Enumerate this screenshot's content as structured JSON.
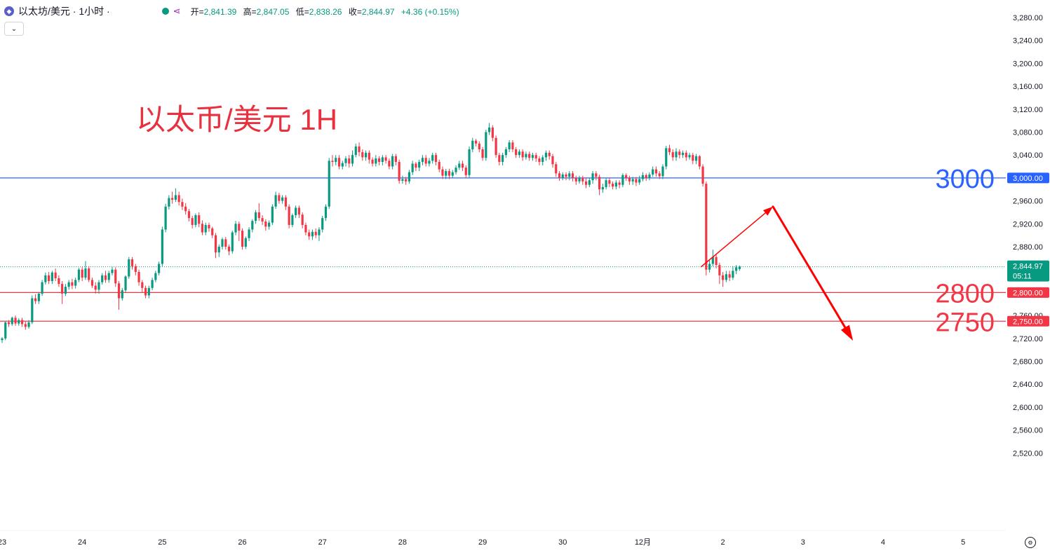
{
  "header": {
    "coin_icon": "ethereum-icon",
    "symbol": "以太坊/美元 · 1小时 ·",
    "status_color": "#089981",
    "share_icon": "share-icon",
    "open_label": "开=",
    "open": "2,841.39",
    "high_label": "高=",
    "high": "2,847.05",
    "low_label": "低=",
    "low": "2,838.26",
    "close_label": "收=",
    "close": "2,844.97",
    "change": "+4.36 (+0.15%)"
  },
  "collapse_icon": "chevron-down-icon",
  "settings_icon": "gear-icon",
  "colors": {
    "up": "#089981",
    "down": "#f23645",
    "line_blue": "#2962ff",
    "line_red": "#f23645",
    "arrow": "#ff0000"
  },
  "chart_data": {
    "type": "candlestick",
    "title": "以太币/美元 1H",
    "ylim": [
      2500,
      3300
    ],
    "y_ticks": [
      "3,280.00",
      "3,240.00",
      "3,200.00",
      "3,160.00",
      "3,120.00",
      "3,080.00",
      "3,040.00",
      "3,000.00",
      "2,960.00",
      "2,920.00",
      "2,880.00",
      "2,760.00",
      "2,720.00",
      "2,680.00",
      "2,640.00",
      "2,600.00",
      "2,560.00",
      "2,520.00"
    ],
    "x_ticks": [
      {
        "label": "23",
        "index": 0
      },
      {
        "label": "24",
        "index": 24
      },
      {
        "label": "25",
        "index": 48
      },
      {
        "label": "26",
        "index": 72
      },
      {
        "label": "27",
        "index": 96
      },
      {
        "label": "28",
        "index": 120
      },
      {
        "label": "29",
        "index": 144
      },
      {
        "label": "30",
        "index": 168
      },
      {
        "label": "12月",
        "index": 192
      },
      {
        "label": "2",
        "index": 216
      },
      {
        "label": "3",
        "index": 240
      },
      {
        "label": "4",
        "index": 264
      },
      {
        "label": "5",
        "index": 288
      }
    ],
    "last_price": {
      "value": 2844.97,
      "label": "2,844.97",
      "countdown": "05:11"
    },
    "levels": [
      {
        "value": 3000,
        "label": "3000",
        "tag": "3,000.00",
        "color": "#2962ff"
      },
      {
        "value": 2800,
        "label": "2800",
        "tag": "2,800.00",
        "color": "#f23645"
      },
      {
        "value": 2750,
        "label": "2750",
        "tag": "2,750.00",
        "color": "#f23645"
      }
    ],
    "forecast": {
      "index_start": 209.5,
      "value_start": 2845,
      "index_peak": 231,
      "value_peak": 2950,
      "index_end": 255,
      "value_end": 2716
    },
    "candles": [
      [
        2717,
        2720,
        2712,
        2722
      ],
      [
        2720,
        2748,
        2717,
        2750
      ],
      [
        2748,
        2745,
        2740,
        2752
      ],
      [
        2745,
        2756,
        2742,
        2758
      ],
      [
        2756,
        2746,
        2742,
        2760
      ],
      [
        2746,
        2752,
        2742,
        2755
      ],
      [
        2752,
        2745,
        2740,
        2756
      ],
      [
        2745,
        2740,
        2735,
        2750
      ],
      [
        2740,
        2748,
        2737,
        2752
      ],
      [
        2748,
        2790,
        2745,
        2795
      ],
      [
        2790,
        2785,
        2780,
        2797
      ],
      [
        2785,
        2798,
        2780,
        2800
      ],
      [
        2798,
        2818,
        2794,
        2822
      ],
      [
        2818,
        2830,
        2814,
        2835
      ],
      [
        2830,
        2820,
        2815,
        2836
      ],
      [
        2820,
        2835,
        2815,
        2838
      ],
      [
        2835,
        2825,
        2820,
        2842
      ],
      [
        2825,
        2815,
        2810,
        2830
      ],
      [
        2815,
        2798,
        2780,
        2820
      ],
      [
        2798,
        2810,
        2794,
        2815
      ],
      [
        2810,
        2818,
        2805,
        2822
      ],
      [
        2818,
        2812,
        2806,
        2824
      ],
      [
        2812,
        2822,
        2807,
        2826
      ],
      [
        2822,
        2840,
        2818,
        2843
      ],
      [
        2840,
        2826,
        2820,
        2845
      ],
      [
        2826,
        2842,
        2822,
        2855
      ],
      [
        2842,
        2822,
        2818,
        2846
      ],
      [
        2822,
        2812,
        2808,
        2826
      ],
      [
        2812,
        2805,
        2798,
        2818
      ],
      [
        2805,
        2818,
        2798,
        2822
      ],
      [
        2818,
        2830,
        2814,
        2834
      ],
      [
        2830,
        2822,
        2817,
        2838
      ],
      [
        2822,
        2834,
        2817,
        2838
      ],
      [
        2834,
        2840,
        2830,
        2845
      ],
      [
        2840,
        2816,
        2810,
        2844
      ],
      [
        2816,
        2790,
        2770,
        2820
      ],
      [
        2790,
        2804,
        2786,
        2808
      ],
      [
        2804,
        2828,
        2800,
        2830
      ],
      [
        2828,
        2858,
        2824,
        2862
      ],
      [
        2858,
        2846,
        2840,
        2862
      ],
      [
        2846,
        2836,
        2830,
        2850
      ],
      [
        2836,
        2818,
        2812,
        2840
      ],
      [
        2818,
        2808,
        2800,
        2822
      ],
      [
        2808,
        2795,
        2790,
        2812
      ],
      [
        2795,
        2808,
        2790,
        2812
      ],
      [
        2808,
        2822,
        2804,
        2826
      ],
      [
        2822,
        2834,
        2818,
        2838
      ],
      [
        2834,
        2850,
        2830,
        2854
      ],
      [
        2850,
        2910,
        2846,
        2915
      ],
      [
        2910,
        2950,
        2905,
        2955
      ],
      [
        2950,
        2965,
        2945,
        2970
      ],
      [
        2965,
        2962,
        2955,
        2976
      ],
      [
        2962,
        2970,
        2958,
        2982
      ],
      [
        2970,
        2958,
        2952,
        2976
      ],
      [
        2958,
        2950,
        2944,
        2964
      ],
      [
        2950,
        2942,
        2936,
        2956
      ],
      [
        2942,
        2930,
        2924,
        2946
      ],
      [
        2930,
        2918,
        2912,
        2934
      ],
      [
        2918,
        2935,
        2914,
        2938
      ],
      [
        2935,
        2920,
        2914,
        2940
      ],
      [
        2920,
        2905,
        2900,
        2926
      ],
      [
        2905,
        2918,
        2900,
        2922
      ],
      [
        2918,
        2912,
        2906,
        2922
      ],
      [
        2912,
        2900,
        2895,
        2915
      ],
      [
        2900,
        2870,
        2860,
        2904
      ],
      [
        2870,
        2880,
        2862,
        2884
      ],
      [
        2880,
        2893,
        2875,
        2896
      ],
      [
        2893,
        2880,
        2875,
        2897
      ],
      [
        2880,
        2872,
        2865,
        2884
      ],
      [
        2872,
        2905,
        2868,
        2908
      ],
      [
        2905,
        2920,
        2900,
        2925
      ],
      [
        2920,
        2908,
        2890,
        2924
      ],
      [
        2908,
        2880,
        2875,
        2912
      ],
      [
        2880,
        2895,
        2876,
        2898
      ],
      [
        2895,
        2910,
        2890,
        2914
      ],
      [
        2910,
        2925,
        2905,
        2928
      ],
      [
        2925,
        2940,
        2920,
        2944
      ],
      [
        2940,
        2930,
        2925,
        2956
      ],
      [
        2930,
        2924,
        2918,
        2935
      ],
      [
        2924,
        2915,
        2908,
        2928
      ],
      [
        2915,
        2922,
        2910,
        2926
      ],
      [
        2922,
        2950,
        2918,
        2954
      ],
      [
        2950,
        2970,
        2946,
        2976
      ],
      [
        2970,
        2960,
        2955,
        2974
      ],
      [
        2960,
        2966,
        2955,
        2970
      ],
      [
        2966,
        2950,
        2944,
        2970
      ],
      [
        2950,
        2918,
        2912,
        2954
      ],
      [
        2918,
        2935,
        2914,
        2938
      ],
      [
        2935,
        2948,
        2930,
        2952
      ],
      [
        2948,
        2936,
        2930,
        2952
      ],
      [
        2936,
        2918,
        2912,
        2940
      ],
      [
        2918,
        2905,
        2900,
        2922
      ],
      [
        2905,
        2898,
        2892,
        2910
      ],
      [
        2898,
        2906,
        2892,
        2910
      ],
      [
        2906,
        2900,
        2895,
        2912
      ],
      [
        2900,
        2910,
        2890,
        2914
      ],
      [
        2910,
        2930,
        2905,
        2934
      ],
      [
        2930,
        2950,
        2925,
        2954
      ],
      [
        2950,
        3030,
        2946,
        3035
      ],
      [
        3030,
        3028,
        3020,
        3040
      ],
      [
        3028,
        3035,
        3022,
        3040
      ],
      [
        3035,
        3020,
        3015,
        3040
      ],
      [
        3020,
        3026,
        3015,
        3030
      ],
      [
        3026,
        3034,
        3020,
        3038
      ],
      [
        3034,
        3025,
        3018,
        3040
      ],
      [
        3025,
        3040,
        3020,
        3048
      ],
      [
        3040,
        3055,
        3036,
        3060
      ],
      [
        3055,
        3045,
        3038,
        3062
      ],
      [
        3045,
        3036,
        3030,
        3050
      ],
      [
        3036,
        3044,
        3030,
        3048
      ],
      [
        3044,
        3032,
        3025,
        3048
      ],
      [
        3032,
        3025,
        3020,
        3036
      ],
      [
        3025,
        3034,
        3020,
        3040
      ],
      [
        3034,
        3028,
        3022,
        3038
      ],
      [
        3028,
        3036,
        3022,
        3040
      ],
      [
        3036,
        3030,
        3025,
        3040
      ],
      [
        3030,
        3020,
        3015,
        3034
      ],
      [
        3020,
        3038,
        3015,
        3042
      ],
      [
        3038,
        3028,
        3022,
        3042
      ],
      [
        3028,
        2995,
        2990,
        3032
      ],
      [
        2995,
        2998,
        2990,
        3004
      ],
      [
        2998,
        2994,
        2988,
        3002
      ],
      [
        2994,
        3010,
        2990,
        3014
      ],
      [
        3010,
        3025,
        3005,
        3030
      ],
      [
        3025,
        3018,
        3012,
        3028
      ],
      [
        3018,
        3028,
        3012,
        3032
      ],
      [
        3028,
        3035,
        3022,
        3040
      ],
      [
        3035,
        3025,
        3020,
        3040
      ],
      [
        3025,
        3030,
        3020,
        3035
      ],
      [
        3030,
        3040,
        3025,
        3044
      ],
      [
        3040,
        3028,
        3022,
        3044
      ],
      [
        3028,
        3015,
        3010,
        3032
      ],
      [
        3015,
        3004,
        2998,
        3020
      ],
      [
        3004,
        3012,
        2998,
        3016
      ],
      [
        3012,
        3004,
        2998,
        3016
      ],
      [
        3004,
        3010,
        3000,
        3014
      ],
      [
        3010,
        3018,
        3006,
        3022
      ],
      [
        3018,
        3025,
        3014,
        3030
      ],
      [
        3025,
        3018,
        3012,
        3030
      ],
      [
        3018,
        3005,
        3000,
        3022
      ],
      [
        3005,
        3050,
        3000,
        3055
      ],
      [
        3050,
        3065,
        3045,
        3070
      ],
      [
        3065,
        3060,
        3055,
        3068
      ],
      [
        3060,
        3050,
        3045,
        3064
      ],
      [
        3050,
        3035,
        3030,
        3054
      ],
      [
        3035,
        3080,
        3030,
        3084
      ],
      [
        3080,
        3088,
        3075,
        3096
      ],
      [
        3088,
        3070,
        3064,
        3092
      ],
      [
        3070,
        3040,
        3035,
        3074
      ],
      [
        3040,
        3028,
        3022,
        3044
      ],
      [
        3028,
        3040,
        3022,
        3044
      ],
      [
        3040,
        3050,
        3035,
        3054
      ],
      [
        3050,
        3062,
        3045,
        3066
      ],
      [
        3062,
        3050,
        3045,
        3066
      ],
      [
        3050,
        3040,
        3035,
        3054
      ],
      [
        3040,
        3046,
        3035,
        3050
      ],
      [
        3046,
        3036,
        3030,
        3050
      ],
      [
        3036,
        3042,
        3032,
        3046
      ],
      [
        3042,
        3035,
        3030,
        3046
      ],
      [
        3035,
        3040,
        3030,
        3044
      ],
      [
        3040,
        3034,
        3028,
        3044
      ],
      [
        3034,
        3028,
        3022,
        3038
      ],
      [
        3028,
        3036,
        3022,
        3040
      ],
      [
        3036,
        3044,
        3030,
        3048
      ],
      [
        3044,
        3038,
        3032,
        3048
      ],
      [
        3038,
        3024,
        3018,
        3042
      ],
      [
        3024,
        3008,
        3002,
        3028
      ],
      [
        3008,
        3000,
        2995,
        3012
      ],
      [
        3000,
        3006,
        2996,
        3010
      ],
      [
        3006,
        3002,
        2996,
        3010
      ],
      [
        3002,
        3008,
        2996,
        3012
      ],
      [
        3008,
        3000,
        2994,
        3012
      ],
      [
        3000,
        2994,
        2988,
        3004
      ],
      [
        2994,
        3000,
        2990,
        3004
      ],
      [
        3000,
        2994,
        2988,
        3004
      ],
      [
        2994,
        2988,
        2982,
        3000
      ],
      [
        2988,
        2996,
        2984,
        3000
      ],
      [
        2996,
        3008,
        2990,
        3012
      ],
      [
        3008,
        3002,
        2996,
        3012
      ],
      [
        3002,
        2980,
        2970,
        3006
      ],
      [
        2980,
        2984,
        2974,
        2990
      ],
      [
        2984,
        2996,
        2980,
        3000
      ],
      [
        2996,
        2990,
        2984,
        3000
      ],
      [
        2990,
        2985,
        2980,
        2994
      ],
      [
        2985,
        2992,
        2980,
        2996
      ],
      [
        2992,
        2988,
        2982,
        2996
      ],
      [
        2988,
        3005,
        2984,
        3008
      ],
      [
        3005,
        3000,
        2995,
        3008
      ],
      [
        3000,
        2994,
        2988,
        3004
      ],
      [
        2994,
        2998,
        2988,
        3002
      ],
      [
        2998,
        2992,
        2986,
        3002
      ],
      [
        2992,
        2998,
        2988,
        3004
      ],
      [
        2998,
        3005,
        2994,
        3010
      ],
      [
        3005,
        3000,
        2995,
        3008
      ],
      [
        3000,
        3006,
        2996,
        3010
      ],
      [
        3006,
        3015,
        3002,
        3020
      ],
      [
        3015,
        3008,
        3002,
        3020
      ],
      [
        3008,
        3003,
        2998,
        3012
      ],
      [
        3003,
        3020,
        2998,
        3024
      ],
      [
        3020,
        3052,
        3015,
        3056
      ],
      [
        3052,
        3045,
        3040,
        3058
      ],
      [
        3045,
        3036,
        3030,
        3050
      ],
      [
        3036,
        3046,
        3030,
        3052
      ],
      [
        3046,
        3040,
        3034,
        3050
      ],
      [
        3040,
        3044,
        3035,
        3048
      ],
      [
        3044,
        3036,
        3030,
        3048
      ],
      [
        3036,
        3040,
        3032,
        3044
      ],
      [
        3040,
        3030,
        3024,
        3044
      ],
      [
        3030,
        3038,
        3024,
        3042
      ],
      [
        3038,
        3020,
        3015,
        3040
      ],
      [
        3020,
        2990,
        2985,
        3024
      ],
      [
        2990,
        2840,
        2830,
        2994
      ],
      [
        2840,
        2850,
        2835,
        2856
      ],
      [
        2850,
        2862,
        2846,
        2875
      ],
      [
        2862,
        2848,
        2842,
        2866
      ],
      [
        2848,
        2830,
        2815,
        2852
      ],
      [
        2830,
        2822,
        2810,
        2836
      ],
      [
        2822,
        2832,
        2818,
        2838
      ],
      [
        2832,
        2826,
        2820,
        2838
      ],
      [
        2826,
        2838,
        2822,
        2846
      ],
      [
        2838,
        2844,
        2832,
        2848
      ],
      [
        2841,
        2845,
        2838,
        2847
      ]
    ]
  }
}
